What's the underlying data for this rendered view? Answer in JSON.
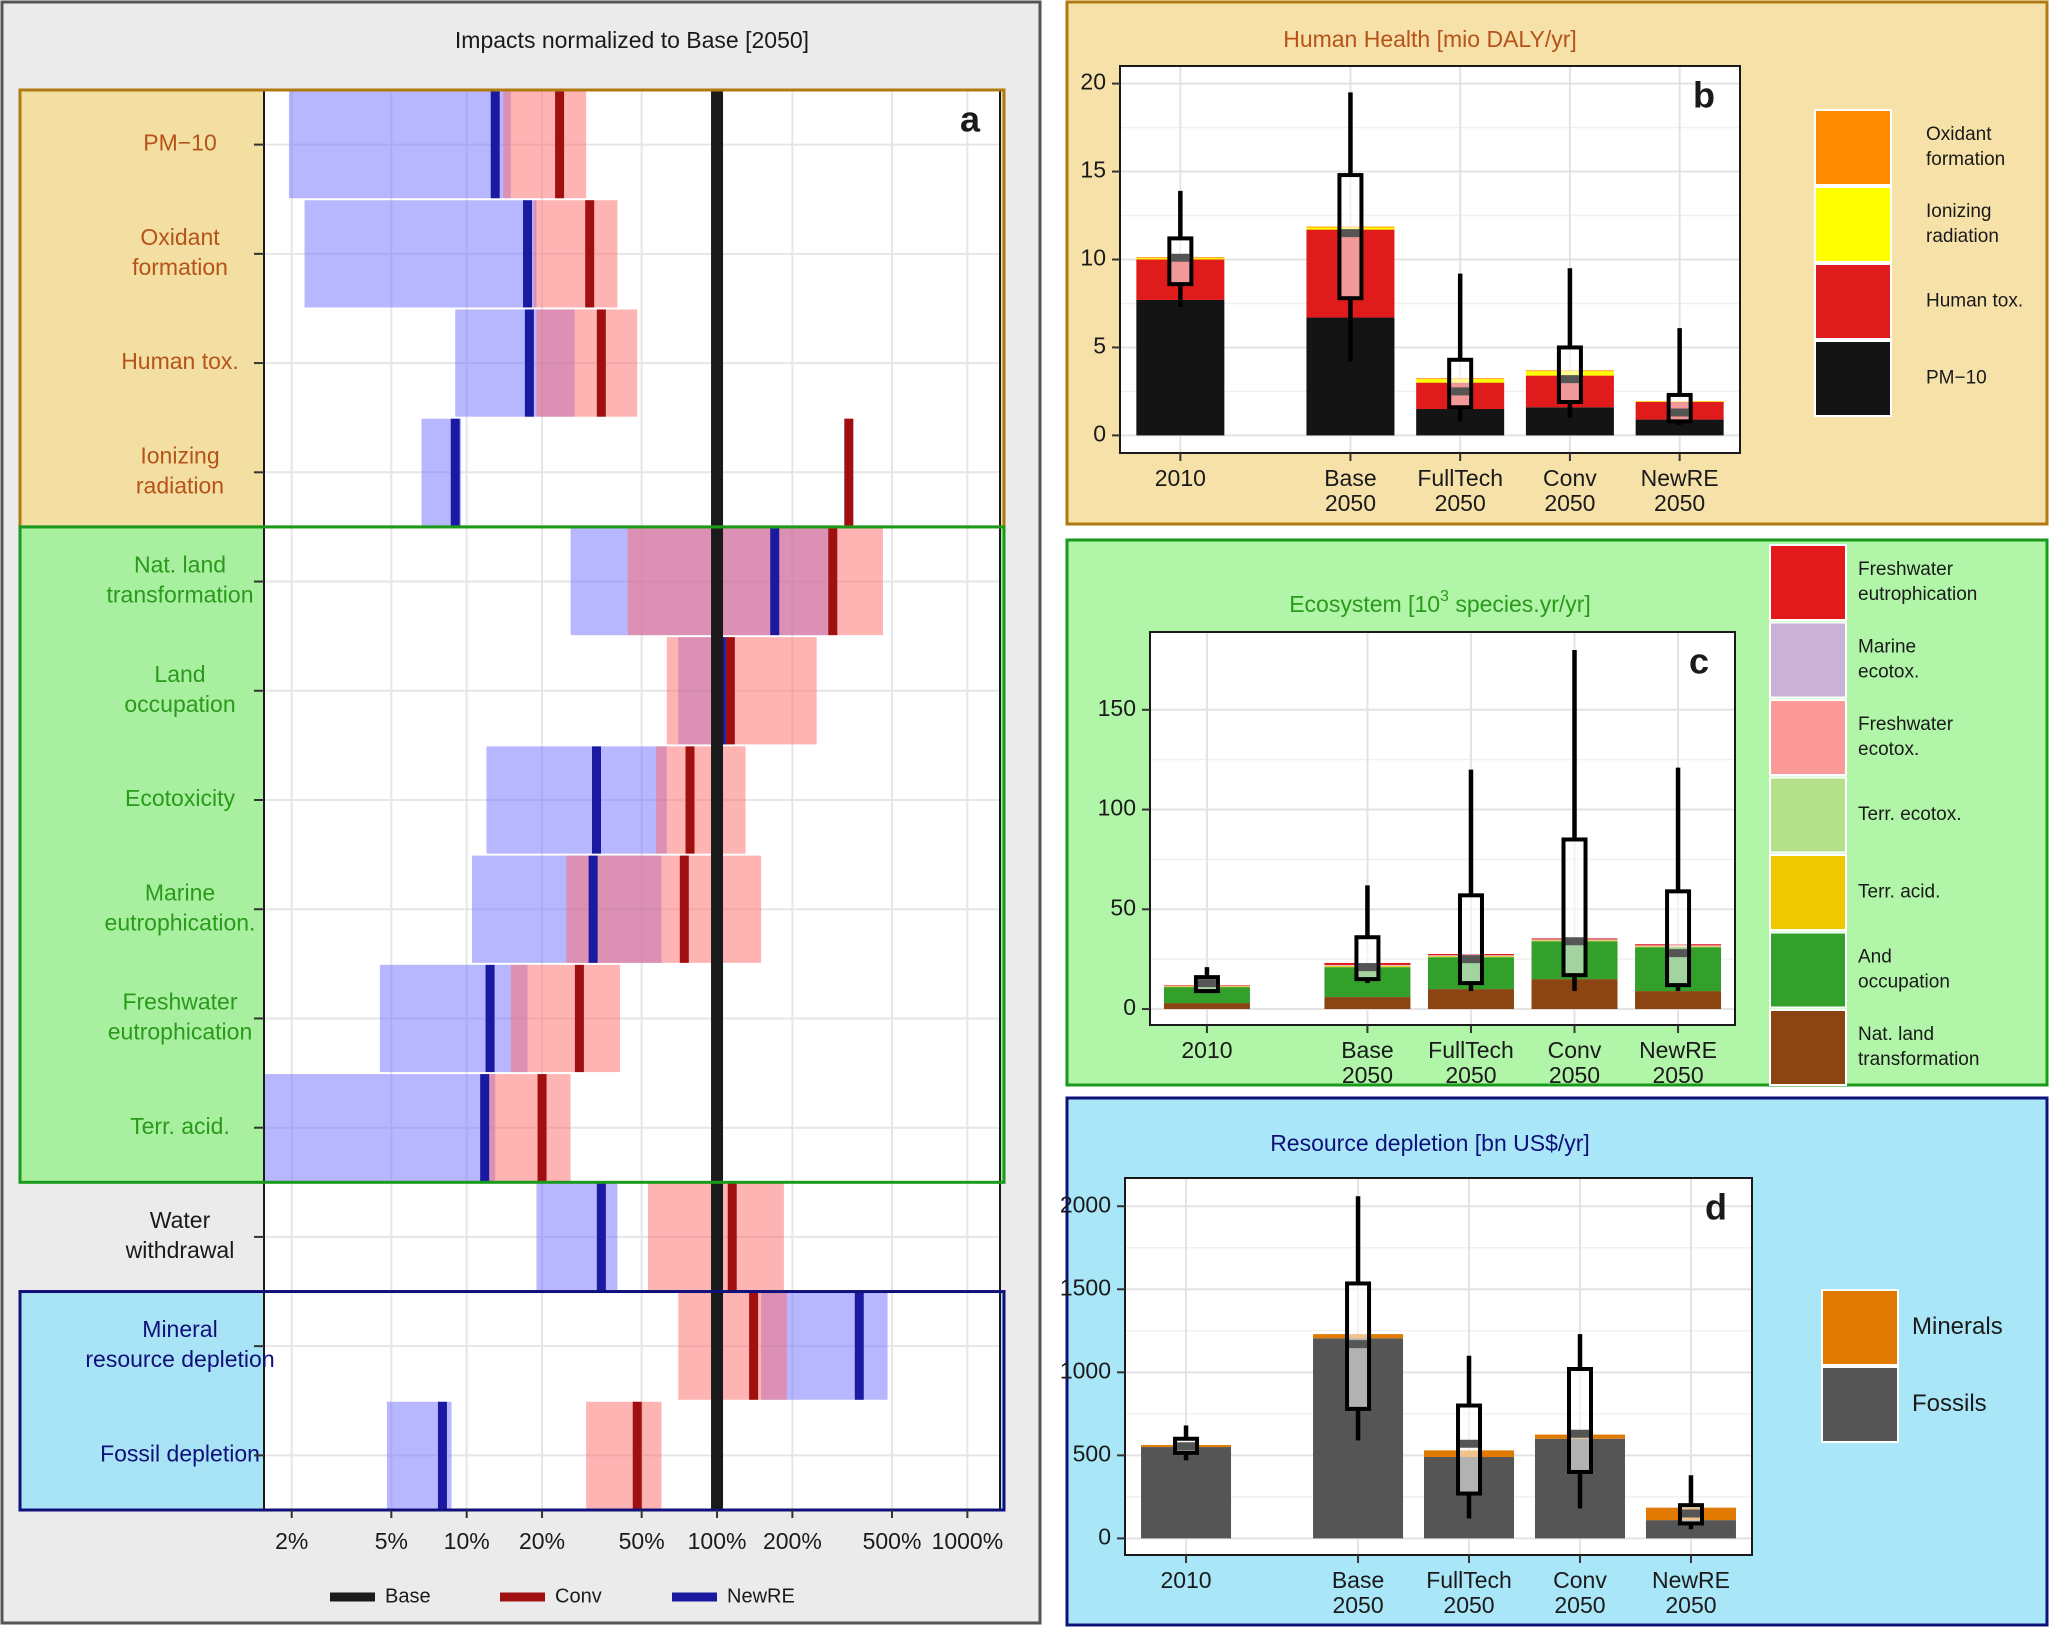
{
  "chart_data": [
    {
      "id": "a",
      "panel_letter": "a",
      "type": "range-bar",
      "title": "Impacts normalized to Base [2050]",
      "x_scale": "log",
      "x_ticks": [
        0.02,
        0.05,
        0.1,
        0.2,
        0.5,
        1,
        2,
        5,
        10
      ],
      "x_tick_labels": [
        "2%",
        "5%",
        "10%",
        "20%",
        "50%",
        "100%",
        "200%",
        "500%",
        "1000%"
      ],
      "xlim": [
        0.0155,
        13.5
      ],
      "base_value": 1,
      "legend": [
        {
          "name": "Base",
          "color": "#1a1a1a"
        },
        {
          "name": "Conv",
          "color": "#a01010"
        },
        {
          "name": "NewRE",
          "color": "#1a1aa0"
        }
      ],
      "groups": [
        {
          "name": "human-health",
          "bg": "#f3dfa2",
          "border": "#b07a10",
          "label_color": "#b5531a",
          "from": 0,
          "to": 3
        },
        {
          "name": "ecosystem",
          "bg": "#a8f0a0",
          "border": "#1a9a1a",
          "label_color": "#2a9a1a",
          "from": 4,
          "to": 9
        },
        {
          "name": "water",
          "bg": "#ffffff",
          "border": "none",
          "label_color": "#1a1a1a",
          "from": 10,
          "to": 10
        },
        {
          "name": "resources",
          "bg": "#a8e4f5",
          "border": "#10107a",
          "label_color": "#10107a",
          "from": 11,
          "to": 12
        }
      ],
      "categories": [
        {
          "label": [
            "PM−10"
          ],
          "newre": {
            "min": 0.0195,
            "max": 0.15,
            "val": 0.13
          },
          "conv": {
            "min": 0.14,
            "max": 0.3,
            "val": 0.235
          }
        },
        {
          "label": [
            "Oxidant",
            "formation"
          ],
          "newre": {
            "min": 0.0225,
            "max": 0.19,
            "val": 0.175
          },
          "conv": {
            "min": 0.185,
            "max": 0.4,
            "val": 0.31
          }
        },
        {
          "label": [
            "Human tox."
          ],
          "newre": {
            "min": 0.09,
            "max": 0.27,
            "val": 0.178
          },
          "conv": {
            "min": 0.19,
            "max": 0.48,
            "val": 0.345
          }
        },
        {
          "label": [
            "Ionizing",
            "radiation"
          ],
          "newre": {
            "min": 0.066,
            "max": 0.095,
            "val": 0.09
          },
          "conv": {
            "min": 3.26,
            "max": 3.5,
            "val": 3.36
          }
        },
        {
          "label": [
            "Nat. land",
            "transformation"
          ],
          "newre": {
            "min": 0.26,
            "max": 2.8,
            "val": 1.7
          },
          "conv": {
            "min": 0.44,
            "max": 4.6,
            "val": 2.9
          }
        },
        {
          "label": [
            "Land",
            "occupation"
          ],
          "newre": {
            "min": 0.7,
            "max": 1.1,
            "val": 1.04
          },
          "conv": {
            "min": 0.63,
            "max": 2.5,
            "val": 1.13
          }
        },
        {
          "label": [
            "Ecotoxicity"
          ],
          "newre": {
            "min": 0.12,
            "max": 0.63,
            "val": 0.33
          },
          "conv": {
            "min": 0.57,
            "max": 1.3,
            "val": 0.78
          }
        },
        {
          "label": [
            "Marine",
            "eutrophication."
          ],
          "newre": {
            "min": 0.105,
            "max": 0.6,
            "val": 0.32
          },
          "conv": {
            "min": 0.25,
            "max": 1.5,
            "val": 0.74
          }
        },
        {
          "label": [
            "Freshwater",
            "eutrophication"
          ],
          "newre": {
            "min": 0.045,
            "max": 0.175,
            "val": 0.124
          },
          "conv": {
            "min": 0.15,
            "max": 0.41,
            "val": 0.282
          }
        },
        {
          "label": [
            "Terr. acid."
          ],
          "newre": {
            "min": 0.0155,
            "max": 0.13,
            "val": 0.118
          },
          "conv": {
            "min": 0.122,
            "max": 0.26,
            "val": 0.2
          }
        },
        {
          "label": [
            "Water",
            "withdrawal"
          ],
          "newre": {
            "min": 0.19,
            "max": 0.4,
            "val": 0.345
          },
          "conv": {
            "min": 0.53,
            "max": 1.85,
            "val": 1.15
          }
        },
        {
          "label": [
            "Mineral",
            "resource depletion"
          ],
          "newre": {
            "min": 1.5,
            "max": 4.8,
            "val": 3.7
          },
          "conv": {
            "min": 0.7,
            "max": 1.9,
            "val": 1.4
          }
        },
        {
          "label": [
            "Fossil depletion"
          ],
          "newre": {
            "min": 0.048,
            "max": 0.087,
            "val": 0.08
          },
          "conv": {
            "min": 0.3,
            "max": 0.6,
            "val": 0.48
          }
        }
      ]
    },
    {
      "id": "b",
      "panel_letter": "b",
      "type": "stacked-bar",
      "title": "Human Health [mio DALY/yr]",
      "title_color": "#b5531a",
      "ylim": [
        -1,
        21
      ],
      "y_ticks": [
        0,
        5,
        10,
        15,
        20
      ],
      "categories": [
        [
          "2010"
        ],
        [
          "Base",
          "2050"
        ],
        [
          "FullTech",
          "2050"
        ],
        [
          "Conv",
          "2050"
        ],
        [
          "NewRE",
          "2050"
        ]
      ],
      "x_positions": [
        0,
        1.55,
        2.55,
        3.55,
        4.55
      ],
      "series": [
        {
          "name": "PM−10",
          "color": "#141414",
          "values": [
            7.7,
            6.7,
            1.5,
            1.6,
            0.9
          ]
        },
        {
          "name": "Human tox.",
          "color": "#e01b1b",
          "values": [
            2.3,
            5.0,
            1.5,
            1.8,
            1.0
          ]
        },
        {
          "name": "Ionizing radiation",
          "color": "#ffff00",
          "values": [
            0.08,
            0.12,
            0.2,
            0.25,
            0.03
          ]
        },
        {
          "name": "Oxidant formation",
          "color": "#ff8c00",
          "values": [
            0.05,
            0.05,
            0.05,
            0.05,
            0.02
          ]
        }
      ],
      "boxes": [
        {
          "low": 7.3,
          "q1": 8.6,
          "med": 10.1,
          "q3": 11.2,
          "high": 13.9
        },
        {
          "low": 4.2,
          "q1": 7.8,
          "med": 11.5,
          "q3": 14.8,
          "high": 19.5
        },
        {
          "low": 0.8,
          "q1": 1.6,
          "med": 2.5,
          "q3": 4.3,
          "high": 9.2
        },
        {
          "low": 1.0,
          "q1": 1.9,
          "med": 3.2,
          "q3": 5.0,
          "high": 9.5
        },
        {
          "low": 0.6,
          "q1": 0.8,
          "med": 1.3,
          "q3": 2.3,
          "high": 6.1
        }
      ],
      "legend": [
        {
          "name": [
            "Oxidant",
            "formation"
          ],
          "color": "#ff8c00"
        },
        {
          "name": [
            "Ionizing",
            "radiation"
          ],
          "color": "#ffff00"
        },
        {
          "name": [
            "Human tox."
          ],
          "color": "#e01b1b"
        },
        {
          "name": [
            "PM−10"
          ],
          "color": "#141414"
        }
      ]
    },
    {
      "id": "c",
      "panel_letter": "c",
      "type": "stacked-bar",
      "title_parts": [
        "Ecosystem [10",
        "3",
        " species.yr/yr]"
      ],
      "title_color": "#2a9a1a",
      "ylim": [
        -8,
        189
      ],
      "y_ticks": [
        0,
        50,
        100,
        150
      ],
      "categories": [
        [
          "2010"
        ],
        [
          "Base",
          "2050"
        ],
        [
          "FullTech",
          "2050"
        ],
        [
          "Conv",
          "2050"
        ],
        [
          "NewRE",
          "2050"
        ]
      ],
      "x_positions": [
        0,
        1.55,
        2.55,
        3.55,
        4.55
      ],
      "series": [
        {
          "name": "Nat. land transformation",
          "color": "#8b4513",
          "values": [
            3,
            6,
            10,
            15,
            9
          ]
        },
        {
          "name": "And occupation",
          "color": "#33a02c",
          "values": [
            8,
            15,
            16,
            19,
            22
          ]
        },
        {
          "name": "Terr. acid.",
          "color": "#f0c800",
          "values": [
            0.3,
            0.5,
            0.4,
            0.3,
            0.3
          ]
        },
        {
          "name": "Terr. ecotox.",
          "color": "#b5e08c",
          "values": [
            0.1,
            0.2,
            0.2,
            0.2,
            0.2
          ]
        },
        {
          "name": "Freshwater ecotox.",
          "color": "#fb9a99",
          "values": [
            0.1,
            0.2,
            0.2,
            0.2,
            0.2
          ]
        },
        {
          "name": "Marine ecotox.",
          "color": "#cab2d6",
          "values": [
            0.1,
            0.2,
            0.2,
            0.2,
            0.2
          ]
        },
        {
          "name": "Freshwater eutrophication",
          "color": "#e31a1c",
          "values": [
            0.3,
            1.0,
            0.6,
            0.5,
            0.6
          ]
        }
      ],
      "boxes": [
        {
          "low": 8,
          "q1": 9,
          "med": 13,
          "q3": 16,
          "high": 21
        },
        {
          "low": 13,
          "q1": 15,
          "med": 21,
          "q3": 36,
          "high": 62
        },
        {
          "low": 9,
          "q1": 13,
          "med": 25,
          "q3": 57,
          "high": 120
        },
        {
          "low": 9,
          "q1": 17,
          "med": 34,
          "q3": 85,
          "high": 180
        },
        {
          "low": 9,
          "q1": 12,
          "med": 28,
          "q3": 59,
          "high": 121
        }
      ],
      "legend": [
        {
          "name": [
            "Freshwater",
            "eutrophication"
          ],
          "color": "#e31a1c"
        },
        {
          "name": [
            "Marine",
            "ecotox."
          ],
          "color": "#cab2d6"
        },
        {
          "name": [
            "Freshwater",
            "ecotox."
          ],
          "color": "#fb9a99"
        },
        {
          "name": [
            "Terr. ecotox."
          ],
          "color": "#b5e08c"
        },
        {
          "name": [
            "Terr. acid."
          ],
          "color": "#f0c800"
        },
        {
          "name": [
            "And",
            "occupation"
          ],
          "color": "#33a02c"
        },
        {
          "name": [
            "Nat. land",
            "transformation"
          ],
          "color": "#8b4513"
        }
      ]
    },
    {
      "id": "d",
      "panel_letter": "d",
      "type": "stacked-bar",
      "title": "Resource depletion [bn US$/yr]",
      "title_color": "#10107a",
      "ylim": [
        -100,
        2170
      ],
      "y_ticks": [
        0,
        500,
        1000,
        1500,
        2000
      ],
      "categories": [
        [
          "2010"
        ],
        [
          "Base",
          "2050"
        ],
        [
          "FullTech",
          "2050"
        ],
        [
          "Conv",
          "2050"
        ],
        [
          "NewRE",
          "2050"
        ]
      ],
      "x_positions": [
        0,
        1.55,
        2.55,
        3.55,
        4.55
      ],
      "series": [
        {
          "name": "Fossils",
          "color": "#555555",
          "values": [
            550,
            1205,
            490,
            600,
            110
          ]
        },
        {
          "name": "Minerals",
          "color": "#e07a00",
          "values": [
            12,
            25,
            40,
            25,
            75
          ]
        }
      ],
      "boxes": [
        {
          "low": 470,
          "q1": 515,
          "med": 555,
          "q3": 600,
          "high": 680
        },
        {
          "low": 590,
          "q1": 780,
          "med": 1170,
          "q3": 1535,
          "high": 2060
        },
        {
          "low": 120,
          "q1": 270,
          "med": 570,
          "q3": 800,
          "high": 1100
        },
        {
          "low": 180,
          "q1": 400,
          "med": 630,
          "q3": 1020,
          "high": 1230
        },
        {
          "low": 55,
          "q1": 90,
          "med": 150,
          "q3": 200,
          "high": 380
        }
      ],
      "legend": [
        {
          "name": [
            "Minerals"
          ],
          "color": "#e07a00"
        },
        {
          "name": [
            "Fossils"
          ],
          "color": "#555555"
        }
      ]
    }
  ]
}
